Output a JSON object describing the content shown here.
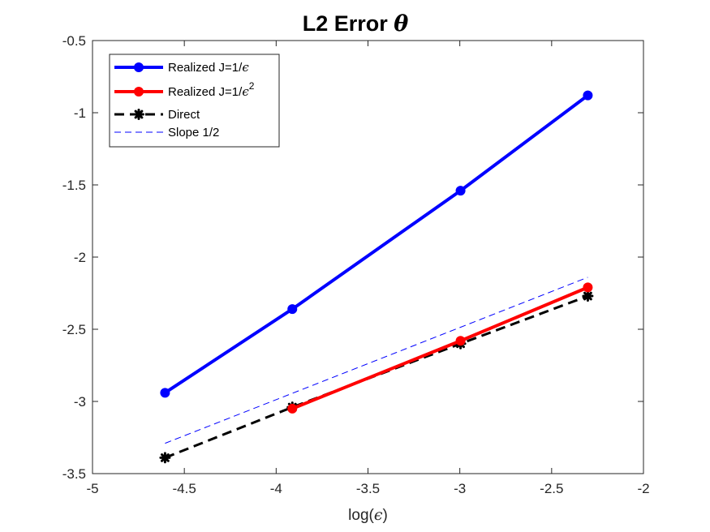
{
  "chart_data": {
    "type": "line",
    "title": "L2 Error",
    "title_symbol": "θ",
    "xlabel": "log(",
    "xlabel_symbol": "ϵ",
    "xlabel_suffix": ")",
    "ylabel": "",
    "xlim": [
      -5,
      -2
    ],
    "ylim": [
      -3.5,
      -0.5
    ],
    "xticks": [
      -5,
      -4.5,
      -4,
      -3.5,
      -3,
      -2.5,
      -2
    ],
    "yticks": [
      -3.5,
      -3,
      -2.5,
      -2,
      -1.5,
      -1,
      -0.5
    ],
    "xtick_labels": [
      "-5",
      "-4.5",
      "-4",
      "-3.5",
      "-3",
      "-2.5",
      "-2"
    ],
    "ytick_labels": [
      "-3.5",
      "-3",
      "-2.5",
      "-2",
      "-1.5",
      "-1",
      "-0.5"
    ],
    "grid": false,
    "legend_position": "top-left",
    "series": [
      {
        "name": "Realized J=1/",
        "name_symbol": "ϵ",
        "name_sup": "",
        "color": "#0000ff",
        "style": "solid-marker-circle",
        "x": [
          -4.605,
          -3.912,
          -2.996,
          -2.303
        ],
        "y": [
          -2.94,
          -2.36,
          -1.54,
          -0.88
        ]
      },
      {
        "name": "Realized J=1/",
        "name_symbol": "ϵ",
        "name_sup": "2",
        "color": "#ff0000",
        "style": "solid-marker-circle",
        "x": [
          -3.912,
          -2.996,
          -2.303
        ],
        "y": [
          -3.05,
          -2.58,
          -2.21
        ]
      },
      {
        "name": "Direct",
        "name_symbol": "",
        "name_sup": "",
        "color": "#000000",
        "style": "dashed-marker-asterisk",
        "x": [
          -4.605,
          -3.912,
          -2.996,
          -2.303
        ],
        "y": [
          -3.39,
          -3.04,
          -2.6,
          -2.27
        ]
      },
      {
        "name": "Slope 1/2",
        "name_symbol": "",
        "name_sup": "",
        "color": "#0000ff",
        "style": "thin-dashed",
        "x": [
          -4.605,
          -2.303
        ],
        "y": [
          -3.29,
          -2.14
        ]
      }
    ]
  }
}
